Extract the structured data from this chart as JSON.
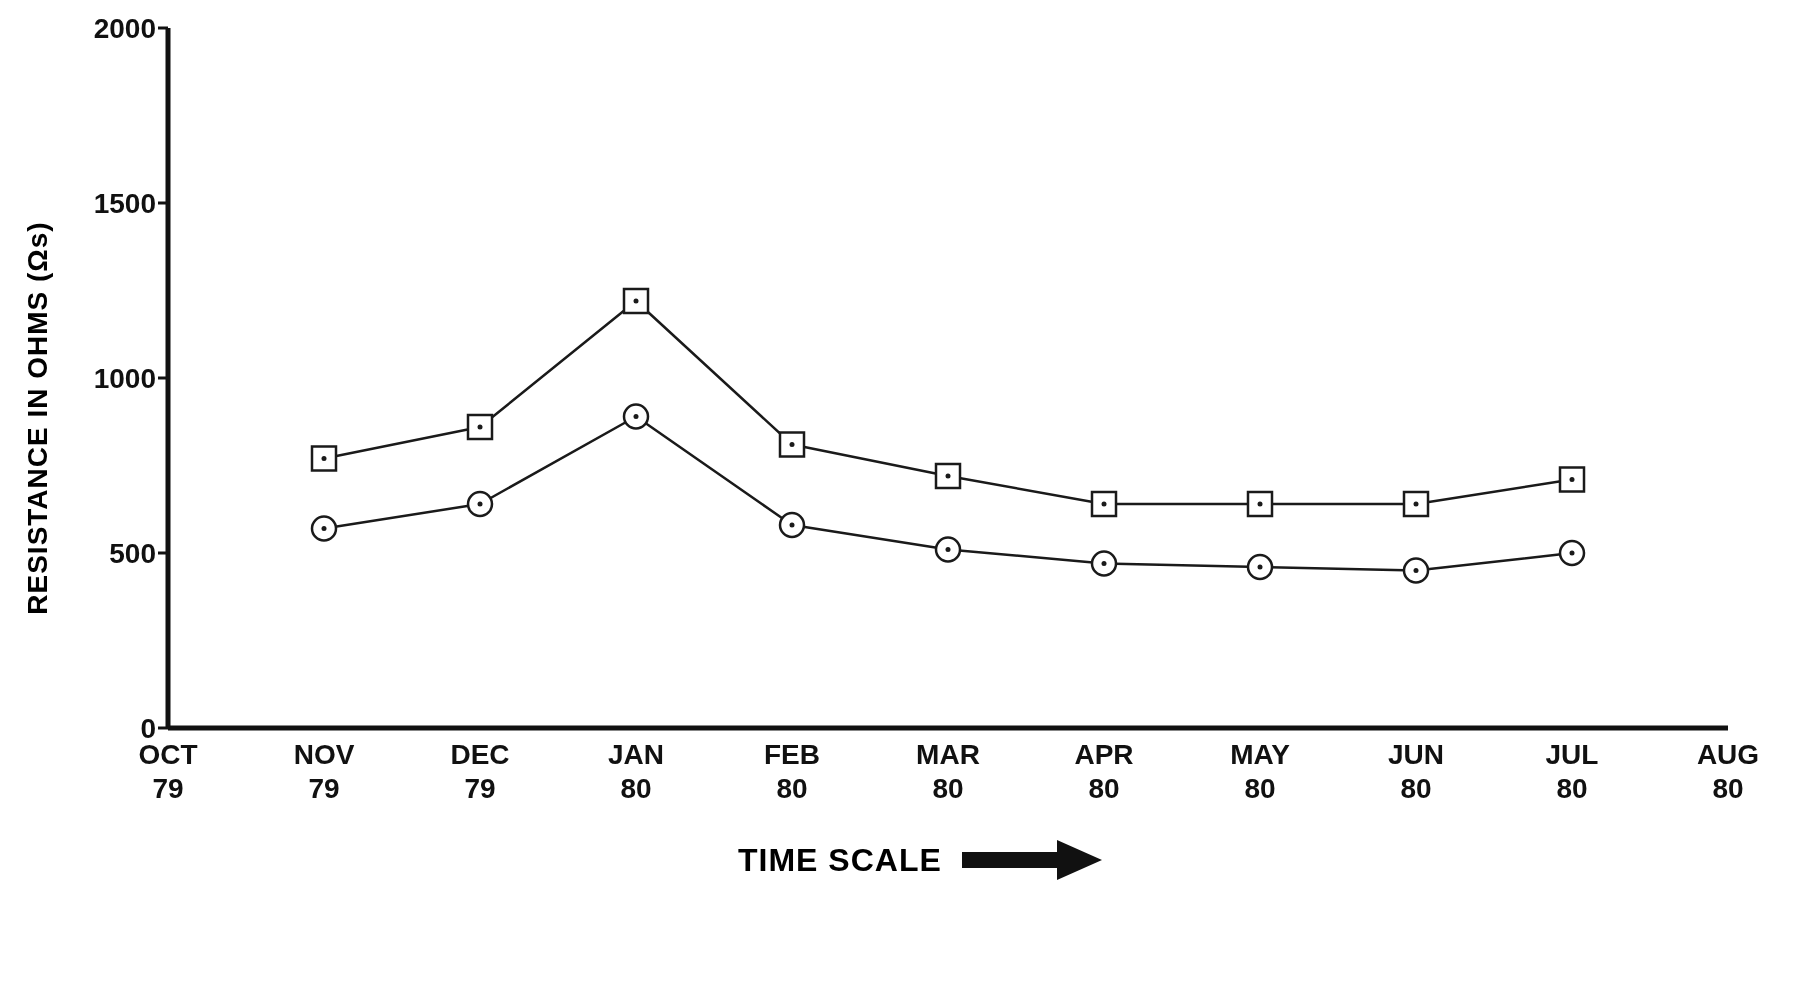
{
  "chart_data": {
    "type": "line",
    "xlabel": "TIME SCALE",
    "ylabel": "RESISTANCE IN OHMS (Ωs)",
    "categories": [
      "OCT 79",
      "NOV 79",
      "DEC 79",
      "JAN 80",
      "FEB 80",
      "MAR 80",
      "APR 80",
      "MAY 80",
      "JUN 80",
      "JUL 80",
      "AUG 80"
    ],
    "series": [
      {
        "color": "#1a1a1a",
        "marker": "square",
        "values": [
          null,
          770,
          860,
          1220,
          810,
          720,
          640,
          640,
          640,
          710,
          null
        ]
      },
      {
        "color": "#1a1a1a",
        "marker": "circle",
        "values": [
          null,
          570,
          640,
          890,
          580,
          510,
          470,
          460,
          450,
          500,
          null
        ]
      }
    ],
    "ylim": [
      0,
      2000
    ],
    "yticks": [
      0,
      500,
      1000,
      1500,
      2000
    ],
    "grid": false,
    "legend": false,
    "line_style": "solid"
  }
}
